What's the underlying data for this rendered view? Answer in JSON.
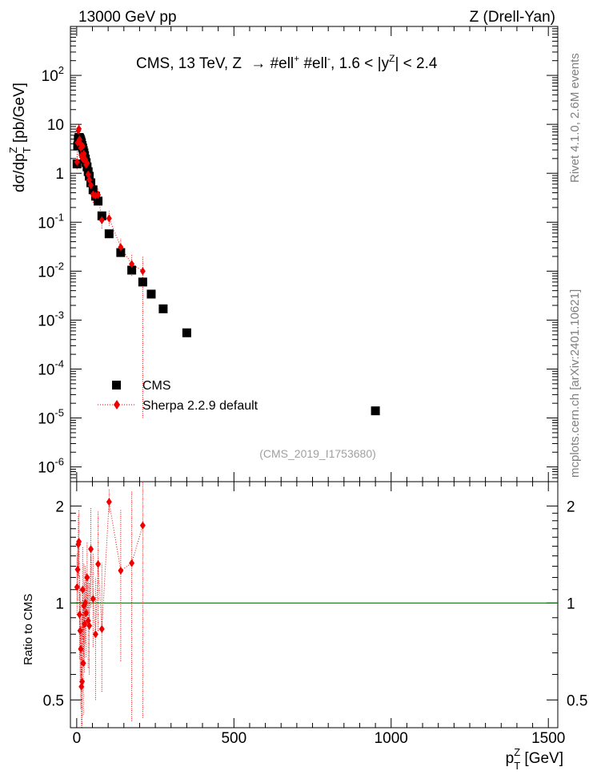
{
  "header": {
    "left": "13000 GeV pp",
    "right": "Z (Drell-Yan)"
  },
  "side_labels": {
    "rivet": "Rivet 4.1.0,  2.6M events",
    "mcplots": "mcplots.cern.ch [arXiv:2401.10621]"
  },
  "plot_title": {
    "pre": "CMS, 13 TeV, Z ",
    "arrow": "→",
    "ell1": " #ell",
    "sup1": "+",
    "ell2": " #ell",
    "sup2": "-",
    "range_a": ", 1.6 < |y",
    "supZ": "Z",
    "range_b": "| < 2.4"
  },
  "watermark": "(CMS_2019_I1753680)",
  "axes": {
    "ylabel_main": {
      "a": "dσ/dp",
      "supZ": "Z",
      "subT": "T",
      "b": " [pb/GeV]"
    },
    "ylabel_ratio": "Ratio to CMS",
    "xlabel": {
      "a": "p",
      "supZ": "Z",
      "subT": "T",
      "b": " [GeV]"
    }
  },
  "legend": {
    "entries": [
      {
        "label": "CMS",
        "color": "#000000",
        "marker": "square"
      },
      {
        "label": "Sherpa 2.2.9 default",
        "color": "#ee0000",
        "marker": "diamond"
      }
    ]
  },
  "chart_data": [
    {
      "type": "scatter",
      "panel": "main",
      "yscale": "log",
      "xlim": [
        -20,
        1530
      ],
      "ylim": [
        5e-07,
        1000
      ],
      "xticks": [
        0,
        500,
        1000,
        1500
      ],
      "yticks": [
        "10^-6",
        "10^-5",
        "10^-4",
        "10^-3",
        "10^-2",
        "10^-1",
        "1",
        "10",
        "10^2"
      ],
      "series": [
        {
          "name": "CMS",
          "x": [
            1,
            3,
            5,
            7,
            9,
            11,
            13,
            15,
            17,
            19,
            21,
            23,
            25,
            27.5,
            30,
            33,
            36.5,
            40,
            45,
            52,
            60,
            68,
            80,
            103,
            140,
            175,
            210,
            237,
            275,
            350,
            950
          ],
          "y": [
            1.55,
            3.6,
            4.9,
            5.4,
            5.3,
            5.0,
            4.6,
            4.2,
            3.7,
            3.3,
            2.9,
            2.6,
            2.3,
            1.95,
            1.65,
            1.35,
            1.08,
            0.87,
            0.64,
            0.46,
            0.34,
            0.27,
            0.135,
            0.058,
            0.024,
            0.0105,
            0.006,
            0.0034,
            0.0017,
            0.00055,
            1.4e-05
          ]
        },
        {
          "name": "Sherpa 2.2.9 default",
          "x": [
            1,
            3,
            5,
            7,
            9,
            11,
            13,
            15,
            17,
            19,
            21,
            23,
            25,
            27.5,
            30,
            33,
            36.5,
            40,
            45,
            52,
            60,
            68,
            80,
            103,
            140,
            175,
            210
          ],
          "y": [
            1.7,
            4.2,
            7.4,
            8.1,
            4.9,
            4.1,
            3.3,
            2.3,
            2.1,
            3.6,
            1.9,
            2.5,
            1.9,
            1.9,
            1.5,
            1.6,
            0.95,
            0.74,
            0.57,
            0.37,
            0.35,
            0.36,
            0.11,
            0.12,
            0.031,
            0.014,
            0.01
          ],
          "yerr_up": [
            0.6,
            1.1,
            1.8,
            2.0,
            1.4,
            1.2,
            1.0,
            0.8,
            0.8,
            1.2,
            0.7,
            0.9,
            0.7,
            0.7,
            0.6,
            0.6,
            0.4,
            0.3,
            0.25,
            0.16,
            0.15,
            0.15,
            0.05,
            0.05,
            0.015,
            0.008,
            0.01
          ],
          "yerr_down": [
            0.5,
            0.9,
            1.5,
            1.6,
            1.1,
            1.0,
            0.8,
            0.6,
            0.6,
            1.0,
            0.5,
            0.7,
            0.5,
            0.5,
            0.4,
            0.5,
            0.3,
            0.25,
            0.2,
            0.12,
            0.12,
            0.12,
            0.035,
            0.035,
            0.01,
            0.006,
            0.00999
          ]
        }
      ]
    },
    {
      "type": "scatter",
      "panel": "ratio",
      "yscale": "log",
      "xlim": [
        -20,
        1530
      ],
      "ylim": [
        0.41,
        2.38
      ],
      "yticks": [
        "0.5",
        "1",
        "2"
      ],
      "reference_line": 1,
      "series": [
        {
          "name": "Sherpa 2.2.9 default / CMS",
          "x": [
            1,
            3,
            5,
            7,
            9,
            11,
            13,
            15,
            17,
            19,
            21,
            23,
            25,
            27.5,
            30,
            33,
            36.5,
            40,
            45,
            52,
            60,
            68,
            80,
            103,
            140,
            175,
            210
          ],
          "y": [
            1.12,
            1.27,
            1.52,
            1.55,
            0.92,
            0.82,
            0.72,
            0.55,
            0.57,
            1.1,
            0.65,
            0.98,
            0.86,
            1.0,
            0.93,
            1.2,
            0.88,
            0.85,
            1.47,
            1.03,
            0.8,
            1.32,
            0.83,
            2.06,
            1.26,
            1.33,
            1.74
          ],
          "yerr_up": [
            0.3,
            0.3,
            0.35,
            0.4,
            0.3,
            0.3,
            0.3,
            0.3,
            0.35,
            0.4,
            0.35,
            0.35,
            0.3,
            0.3,
            0.3,
            0.35,
            0.3,
            0.3,
            0.5,
            0.4,
            0.4,
            0.6,
            0.5,
            0.2,
            0.7,
            0.9,
            1.0
          ],
          "yerr_down": [
            0.2,
            0.25,
            0.3,
            0.35,
            0.25,
            0.25,
            0.25,
            0.2,
            0.25,
            0.3,
            0.2,
            0.3,
            0.25,
            0.25,
            0.25,
            0.3,
            0.25,
            0.25,
            0.5,
            0.3,
            0.3,
            0.5,
            0.3,
            0.15,
            0.6,
            0.9,
            1.3
          ]
        }
      ]
    }
  ],
  "colors": {
    "data": "#000000",
    "mc": "#ee0000",
    "reference_line": "#006400",
    "watermark": "#a0a0a0",
    "side_text": "#7f7f7f"
  }
}
